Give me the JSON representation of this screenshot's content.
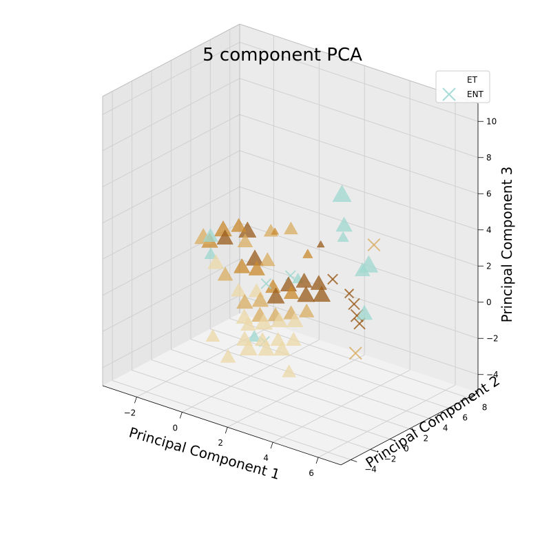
{
  "chart_data": {
    "type": "scatter",
    "title": "5 component PCA",
    "xlabel": "Principal Component 1",
    "ylabel": "Principal Component 2",
    "zlabel": "Principal Component 3",
    "xlim": [
      -3.5,
      7
    ],
    "ylim": [
      -5,
      9
    ],
    "zlim": [
      -5,
      11
    ],
    "xticks": [
      -2,
      0,
      2,
      4,
      6
    ],
    "yticks": [
      -4,
      -2,
      0,
      2,
      4,
      6,
      8
    ],
    "zticks": [
      -4,
      -2,
      0,
      2,
      4,
      6,
      8,
      10
    ],
    "grid": true,
    "legend_position": "top-right",
    "legend": [
      {
        "label": "ET",
        "marker": "none"
      },
      {
        "label": "ENT",
        "marker": "x",
        "color": "#a8dcd6"
      }
    ],
    "colors": {
      "teal": "#9fd8d0",
      "light_tan": "#ecd8a8",
      "tan": "#d9ad62",
      "orange": "#c98a2e",
      "brown": "#9a5b1a"
    },
    "series": [
      {
        "marker": "triangle",
        "points": [
          {
            "x": -2.6,
            "y": 3.2,
            "z": 1.2,
            "c": "tan",
            "s": 14
          },
          {
            "x": -2.4,
            "y": 3.4,
            "z": 1.0,
            "c": "orange",
            "s": 13
          },
          {
            "x": -2.2,
            "y": 3.0,
            "z": 1.5,
            "c": "teal",
            "s": 12
          },
          {
            "x": -1.9,
            "y": 3.6,
            "z": 1.8,
            "c": "orange",
            "s": 14
          },
          {
            "x": -1.6,
            "y": 3.1,
            "z": 1.6,
            "c": "brown",
            "s": 13
          },
          {
            "x": -1.3,
            "y": 3.8,
            "z": 2.2,
            "c": "orange",
            "s": 12
          },
          {
            "x": -1.0,
            "y": 4.0,
            "z": 2.0,
            "c": "brown",
            "s": 14
          },
          {
            "x": -0.8,
            "y": 3.3,
            "z": 1.7,
            "c": "tan",
            "s": 12
          },
          {
            "x": -1.7,
            "y": 2.4,
            "z": 0.4,
            "c": "light_tan",
            "s": 13
          },
          {
            "x": -1.2,
            "y": 2.2,
            "z": 0.0,
            "c": "tan",
            "s": 12
          },
          {
            "x": -0.6,
            "y": 2.5,
            "z": 0.6,
            "c": "orange",
            "s": 13
          },
          {
            "x": -0.2,
            "y": 2.9,
            "z": 1.1,
            "c": "brown",
            "s": 14
          },
          {
            "x": 0.1,
            "y": 2.4,
            "z": 0.8,
            "c": "orange",
            "s": 13
          },
          {
            "x": 0.4,
            "y": 2.8,
            "z": 1.3,
            "c": "tan",
            "s": 12
          },
          {
            "x": -0.4,
            "y": 1.7,
            "z": -0.4,
            "c": "light_tan",
            "s": 12
          },
          {
            "x": 0.0,
            "y": 1.4,
            "z": -0.8,
            "c": "tan",
            "s": 13
          },
          {
            "x": 0.3,
            "y": 1.9,
            "z": -0.2,
            "c": "light_tan",
            "s": 12
          },
          {
            "x": 0.6,
            "y": 1.6,
            "z": -0.5,
            "c": "tan",
            "s": 13
          },
          {
            "x": 0.9,
            "y": 2.2,
            "z": 0.2,
            "c": "orange",
            "s": 12
          },
          {
            "x": 1.2,
            "y": 1.8,
            "z": -0.1,
            "c": "brown",
            "s": 14
          },
          {
            "x": 1.5,
            "y": 2.4,
            "z": 0.5,
            "c": "brown",
            "s": 13
          },
          {
            "x": 1.8,
            "y": 2.0,
            "z": 0.3,
            "c": "orange",
            "s": 12
          },
          {
            "x": 2.1,
            "y": 2.6,
            "z": 0.9,
            "c": "brown",
            "s": 13
          },
          {
            "x": 2.4,
            "y": 2.1,
            "z": 0.4,
            "c": "brown",
            "s": 14
          },
          {
            "x": 2.7,
            "y": 2.7,
            "z": 1.0,
            "c": "brown",
            "s": 13
          },
          {
            "x": 3.0,
            "y": 2.3,
            "z": 0.6,
            "c": "brown",
            "s": 14
          },
          {
            "x": 0.2,
            "y": 0.9,
            "z": -1.4,
            "c": "light_tan",
            "s": 13
          },
          {
            "x": 0.5,
            "y": 0.6,
            "z": -1.6,
            "c": "light_tan",
            "s": 12
          },
          {
            "x": 0.8,
            "y": 1.1,
            "z": -1.1,
            "c": "tan",
            "s": 13
          },
          {
            "x": 1.1,
            "y": 0.8,
            "z": -1.3,
            "c": "light_tan",
            "s": 14
          },
          {
            "x": 1.4,
            "y": 1.3,
            "z": -0.9,
            "c": "tan",
            "s": 12
          },
          {
            "x": 1.7,
            "y": 1.0,
            "z": -1.0,
            "c": "light_tan",
            "s": 13
          },
          {
            "x": 2.0,
            "y": 1.5,
            "z": -0.6,
            "c": "tan",
            "s": 12
          },
          {
            "x": 2.3,
            "y": 1.2,
            "z": -0.8,
            "c": "light_tan",
            "s": 13
          },
          {
            "x": 2.6,
            "y": 1.7,
            "z": -0.3,
            "c": "tan",
            "s": 12
          },
          {
            "x": 0.6,
            "y": 0.0,
            "z": -2.2,
            "c": "light_tan",
            "s": 13
          },
          {
            "x": 0.9,
            "y": -0.3,
            "z": -2.5,
            "c": "light_tan",
            "s": 14
          },
          {
            "x": 1.3,
            "y": 0.2,
            "z": -2.0,
            "c": "light_tan",
            "s": 12
          },
          {
            "x": 1.6,
            "y": -0.1,
            "z": -2.3,
            "c": "light_tan",
            "s": 13
          },
          {
            "x": 1.9,
            "y": 0.4,
            "z": -1.8,
            "c": "light_tan",
            "s": 12
          },
          {
            "x": 2.2,
            "y": 0.1,
            "z": -2.1,
            "c": "light_tan",
            "s": 13
          },
          {
            "x": 2.5,
            "y": 0.6,
            "z": -1.6,
            "c": "light_tan",
            "s": 12
          },
          {
            "x": 0.3,
            "y": -1.0,
            "z": -3.0,
            "c": "light_tan",
            "s": 12
          },
          {
            "x": -0.8,
            "y": 0.0,
            "z": -2.6,
            "c": "light_tan",
            "s": 11
          },
          {
            "x": 2.9,
            "y": -0.8,
            "z": -2.8,
            "c": "light_tan",
            "s": 11
          },
          {
            "x": 1.0,
            "y": 3.8,
            "z": 3.0,
            "c": "tan",
            "s": 11
          },
          {
            "x": 0.2,
            "y": 3.6,
            "z": 2.6,
            "c": "tan",
            "s": 11
          },
          {
            "x": 2.0,
            "y": 3.2,
            "z": 2.2,
            "c": "orange",
            "s": 8
          },
          {
            "x": 2.4,
            "y": 3.6,
            "z": 2.8,
            "c": "brown",
            "s": 6
          },
          {
            "x": 0.6,
            "y": 3.1,
            "z": 2.9,
            "c": "orange",
            "s": 6
          },
          {
            "x": 2.3,
            "y": 6.0,
            "z": 4.8,
            "c": "teal",
            "s": 15
          },
          {
            "x": 3.0,
            "y": 4.6,
            "z": 3.8,
            "c": "teal",
            "s": 13
          },
          {
            "x": 4.6,
            "y": 3.4,
            "z": 2.6,
            "c": "teal",
            "s": 15
          },
          {
            "x": 4.5,
            "y": 3.0,
            "z": 2.4,
            "c": "teal",
            "s": 12
          },
          {
            "x": 5.1,
            "y": 1.8,
            "z": 0.6,
            "c": "teal",
            "s": 13
          },
          {
            "x": 3.3,
            "y": 3.8,
            "z": 3.5,
            "c": "teal",
            "s": 9
          },
          {
            "x": -2.1,
            "y": 2.8,
            "z": 0.6,
            "c": "teal",
            "s": 10
          },
          {
            "x": 0.9,
            "y": 0.3,
            "z": -2.0,
            "c": "teal",
            "s": 10
          },
          {
            "x": 1.7,
            "y": 2.9,
            "z": 0.8,
            "c": "teal",
            "s": 9
          }
        ]
      },
      {
        "marker": "x",
        "points": [
          {
            "x": 4.4,
            "y": 4.4,
            "z": 3.4,
            "c": "tan",
            "s": 11
          },
          {
            "x": 4.3,
            "y": 2.6,
            "z": 0.6,
            "c": "brown",
            "s": 10
          },
          {
            "x": 4.6,
            "y": 2.2,
            "z": 0.2,
            "c": "brown",
            "s": 11
          },
          {
            "x": 4.8,
            "y": 2.0,
            "z": -0.1,
            "c": "brown",
            "s": 10
          },
          {
            "x": 4.0,
            "y": 2.8,
            "z": 1.0,
            "c": "brown",
            "s": 8
          },
          {
            "x": 3.1,
            "y": 3.2,
            "z": 1.3,
            "c": "brown",
            "s": 9
          },
          {
            "x": 5.1,
            "y": 0.9,
            "z": -1.3,
            "c": "tan",
            "s": 11
          },
          {
            "x": 0.6,
            "y": 2.2,
            "z": 0.3,
            "c": "teal",
            "s": 9
          },
          {
            "x": 1.5,
            "y": 2.6,
            "z": 1.0,
            "c": "teal",
            "s": 9
          },
          {
            "x": 1.3,
            "y": 0.4,
            "z": -2.1,
            "c": "teal",
            "s": 9
          }
        ]
      }
    ]
  }
}
